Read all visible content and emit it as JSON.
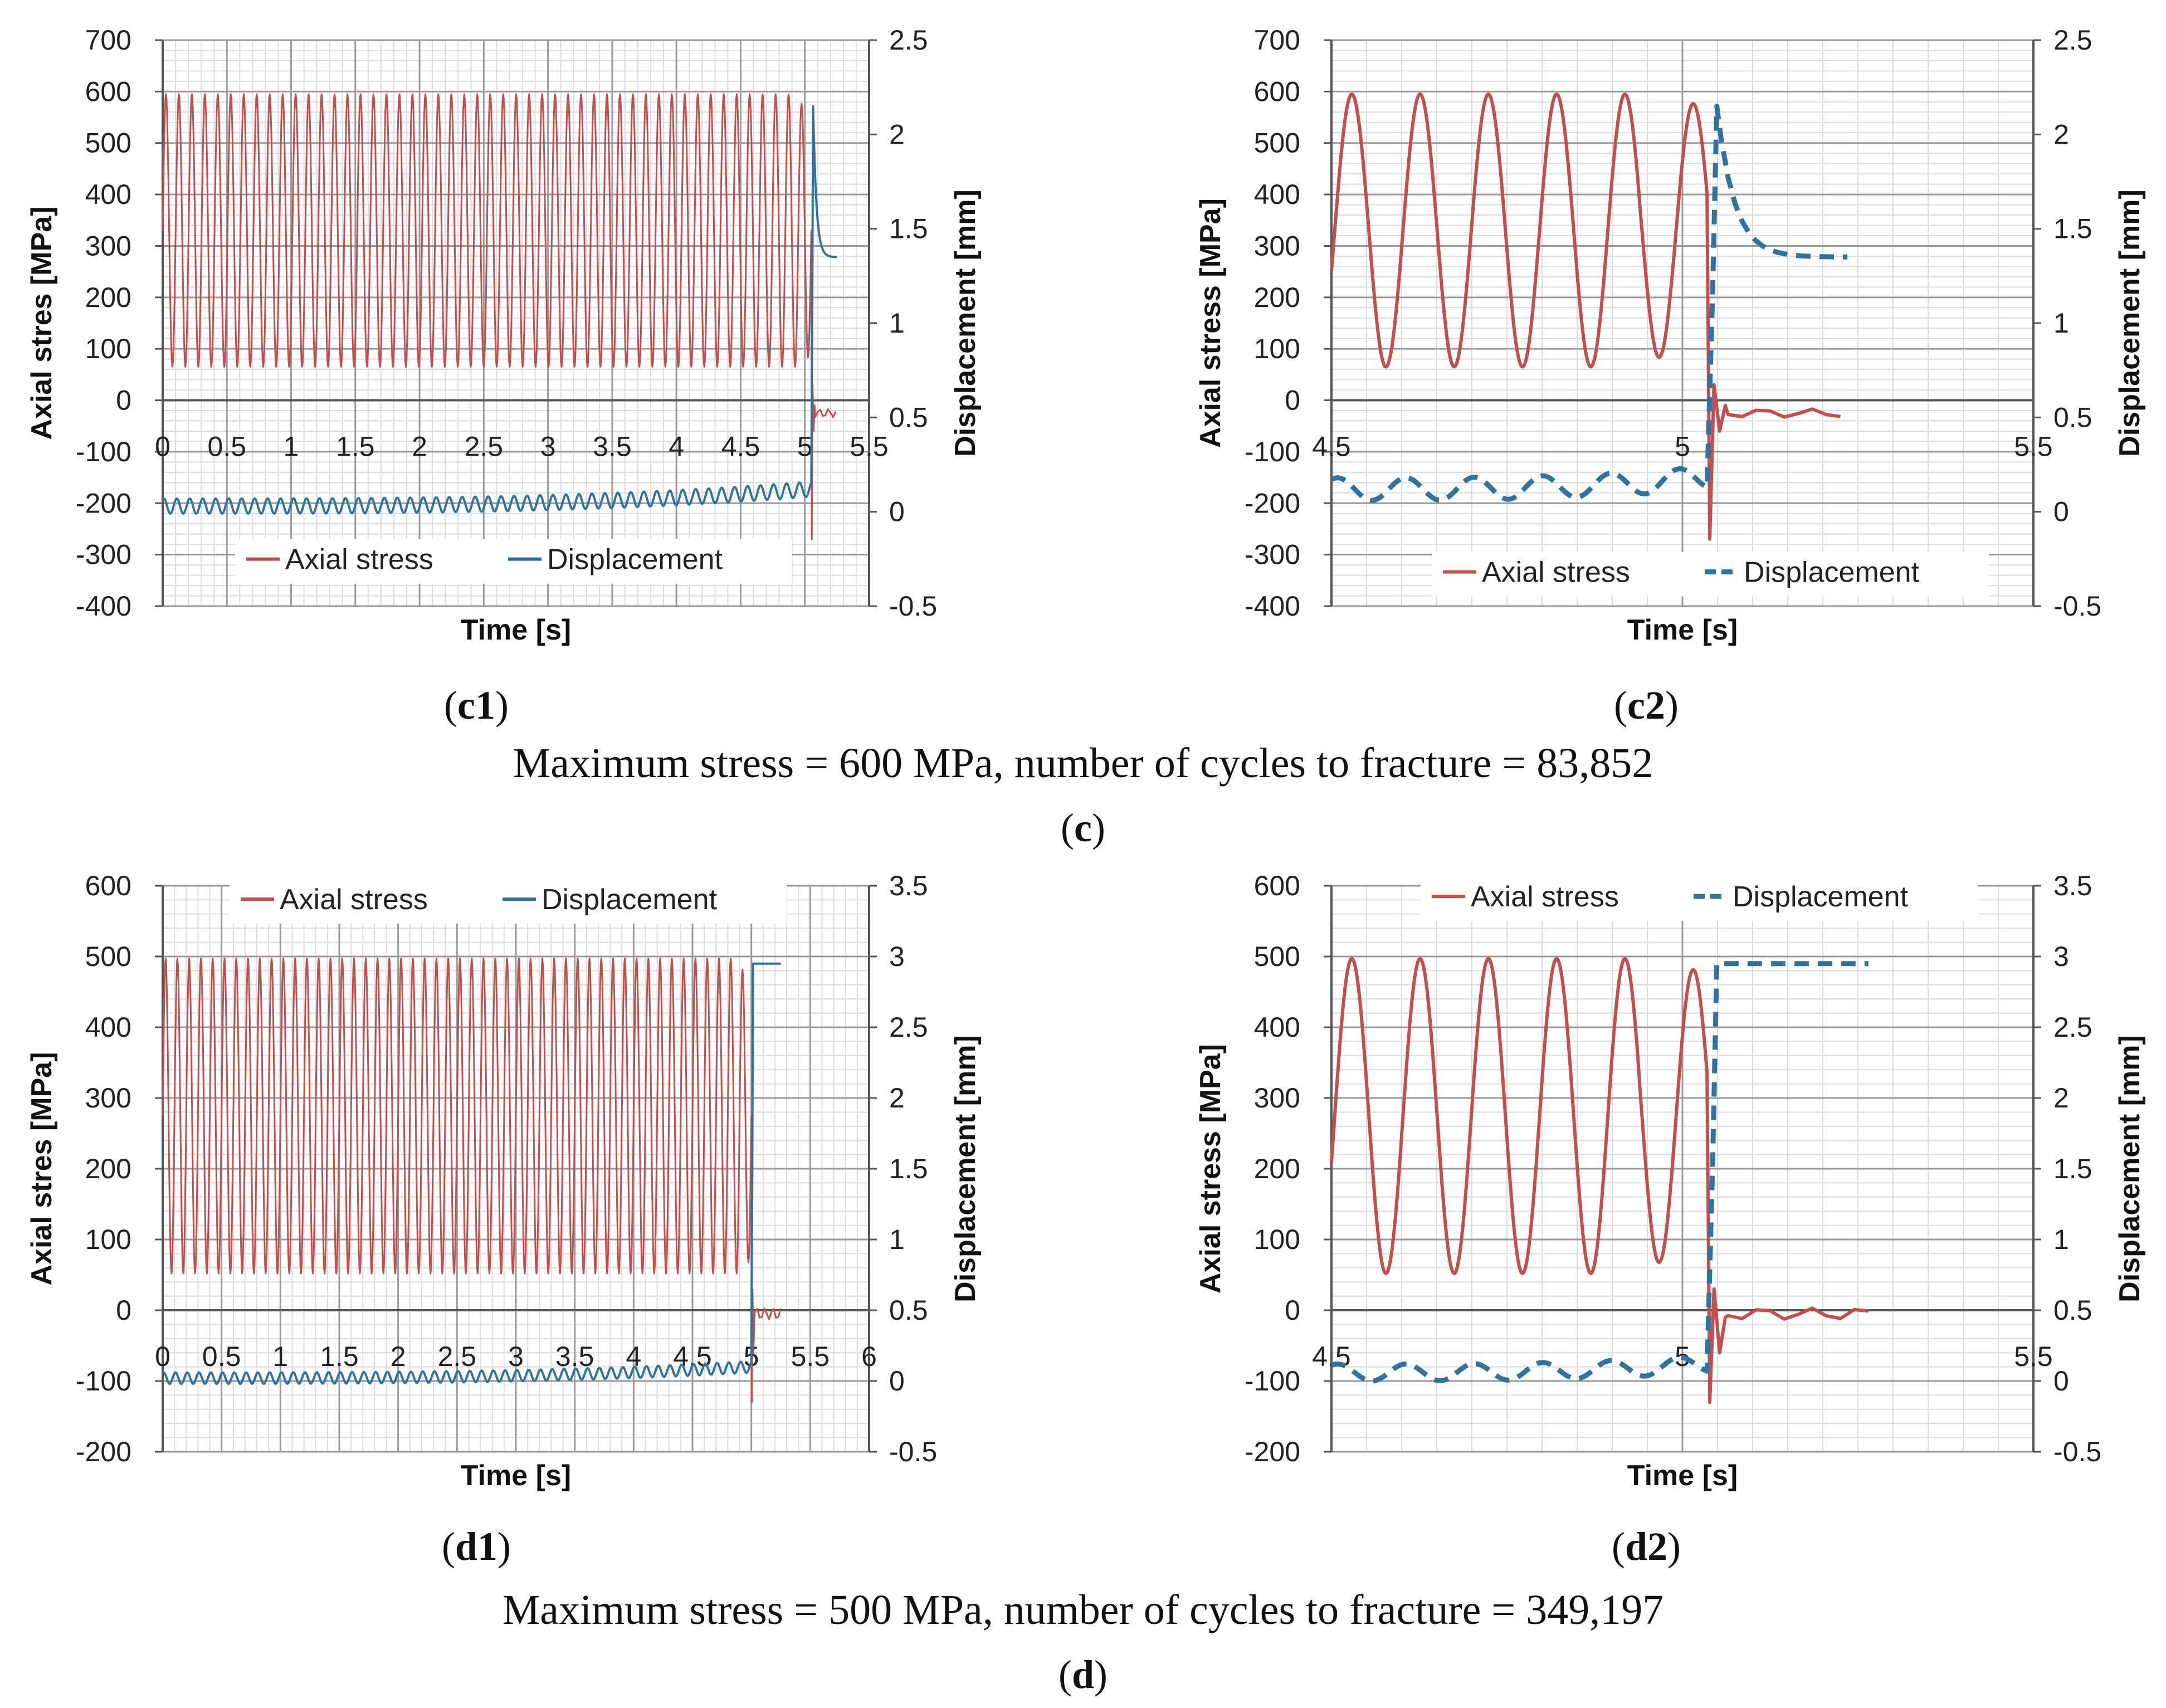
{
  "figure": {
    "caption_c": "Maximum stress = 600 MPa, number of cycles to fracture = 83,852",
    "label_c": "c",
    "caption_d": "Maximum stress = 500 MPa, number of cycles to fracture = 349,197",
    "label_d": "d"
  },
  "colors": {
    "stress": "#c0504d",
    "displacement": "#31739f",
    "grid_major": "#9a9a9a",
    "grid_minor": "#dcdcdc",
    "axis": "#555555"
  },
  "chart_data": [
    {
      "id": "c1",
      "panel_label": "c1",
      "type": "line",
      "xlabel": "Time [s]",
      "ylabel": "Axial stres [MPa]",
      "y2label": "Displacement [mm]",
      "xlim": [
        0,
        5.5
      ],
      "xticks": [
        "0",
        "0.5",
        "1",
        "1.5",
        "2",
        "2.5",
        "3",
        "3.5",
        "4",
        "4.5",
        "5",
        "5.5"
      ],
      "ylim": [
        -400,
        700
      ],
      "yticks": [
        "700",
        "600",
        "500",
        "400",
        "300",
        "200",
        "100",
        "0",
        "-100",
        "-200",
        "-300",
        "-400"
      ],
      "y2lim": [
        -0.5,
        2.5
      ],
      "y2ticks": [
        "2.5",
        "2",
        "1.5",
        "1",
        "0.5",
        "0",
        "-0.5"
      ],
      "legend": [
        "Axial stress",
        "Displacement"
      ],
      "legend_position": "bottom-left",
      "displacement_style": "solid",
      "series": [
        {
          "name": "Axial stress",
          "axis": "left",
          "kind": "cyclic",
          "cycles": 50,
          "min": 65,
          "max": 595,
          "t_start": 0.0,
          "t_end": 5.05,
          "fracture_time": 5.05,
          "fracture_min": -270,
          "fracture_max": 30,
          "end_time": 5.25,
          "end_value": -25
        },
        {
          "name": "Displacement",
          "axis": "right",
          "kind": "cyclic",
          "cycles": 50,
          "start_mean": 0.03,
          "end_mean": 0.12,
          "amplitude": 0.04,
          "t_start": 0.0,
          "t_end": 5.05,
          "fracture_time": 5.05,
          "peak_value": 2.15,
          "plateau_value": 1.35,
          "end_time": 5.25
        }
      ]
    },
    {
      "id": "c2",
      "panel_label": "c2",
      "type": "line",
      "xlabel": "Time [s]",
      "ylabel": "Axial stress [MPa]",
      "y2label": "Displacement [mm]",
      "xlim": [
        4.5,
        5.5
      ],
      "xticks": [
        "4.5",
        "5",
        "5.5"
      ],
      "ylim": [
        -400,
        700
      ],
      "yticks": [
        "700",
        "600",
        "500",
        "400",
        "300",
        "200",
        "100",
        "0",
        "-100",
        "-200",
        "-300",
        "-400"
      ],
      "y2lim": [
        -0.5,
        2.5
      ],
      "y2ticks": [
        "2.5",
        "2",
        "1.5",
        "1",
        "0.5",
        "0",
        "-0.5"
      ],
      "legend": [
        "Axial stress",
        "Displacement"
      ],
      "legend_position": "bottom-center",
      "displacement_style": "dashed",
      "series": [
        {
          "name": "Axial stress",
          "axis": "left",
          "kind": "cyclic",
          "cycles": 5.5,
          "min": 65,
          "max": 595,
          "t_start": 4.5,
          "t_end": 5.035,
          "fracture_time": 5.035,
          "fracture_min": -270,
          "fracture_max": 30,
          "end_time": 5.24,
          "end_value": -25
        },
        {
          "name": "Displacement",
          "axis": "right",
          "kind": "cyclic",
          "cycles": 5.5,
          "start_mean": 0.12,
          "end_mean": 0.18,
          "amplitude": 0.06,
          "t_start": 4.5,
          "t_end": 5.035,
          "fracture_time": 5.035,
          "peak_value": 2.15,
          "plateau_value": 1.35,
          "end_time": 5.24
        }
      ]
    },
    {
      "id": "d1",
      "panel_label": "d1",
      "type": "line",
      "xlabel": "Time [s]",
      "ylabel": "Axial stres [MPa]",
      "y2label": "Displacement [mm]",
      "xlim": [
        0,
        6
      ],
      "xticks": [
        "0",
        "0.5",
        "1",
        "1.5",
        "2",
        "2.5",
        "3",
        "3.5",
        "4",
        "4.5",
        "5",
        "5.5",
        "6"
      ],
      "ylim": [
        -200,
        600
      ],
      "yticks": [
        "600",
        "500",
        "400",
        "300",
        "200",
        "100",
        "0",
        "-100",
        "-200"
      ],
      "y2lim": [
        -0.5,
        3.5
      ],
      "y2ticks": [
        "3.5",
        "3",
        "2.5",
        "2",
        "1.5",
        "1",
        "0.5",
        "0",
        "-0.5"
      ],
      "legend": [
        "Axial stress",
        "Displacement"
      ],
      "legend_position": "top-left",
      "displacement_style": "solid",
      "series": [
        {
          "name": "Axial stress",
          "axis": "left",
          "kind": "cyclic",
          "cycles": 50,
          "min": 52,
          "max": 497,
          "t_start": 0.0,
          "t_end": 5.0,
          "fracture_time": 5.0,
          "fracture_min": -130,
          "fracture_max": 30,
          "end_time": 5.25,
          "end_value": -5
        },
        {
          "name": "Displacement",
          "axis": "right",
          "kind": "cyclic",
          "cycles": 50,
          "start_mean": 0.02,
          "end_mean": 0.1,
          "amplitude": 0.04,
          "t_start": 0.0,
          "t_end": 5.0,
          "fracture_time": 5.0,
          "peak_value": 2.95,
          "plateau_value": 2.95,
          "end_time": 5.25
        }
      ]
    },
    {
      "id": "d2",
      "panel_label": "d2",
      "type": "line",
      "xlabel": "Time [s]",
      "ylabel": "Axial stress [MPa]",
      "y2label": "Displacement [mm]",
      "xlim": [
        4.5,
        5.5
      ],
      "xticks": [
        "4.5",
        "5",
        "5.5"
      ],
      "ylim": [
        -200,
        600
      ],
      "yticks": [
        "600",
        "500",
        "400",
        "300",
        "200",
        "100",
        "0",
        "-100",
        "-200"
      ],
      "y2lim": [
        -0.5,
        3.5
      ],
      "y2ticks": [
        "3.5",
        "3",
        "2.5",
        "2",
        "1.5",
        "1",
        "0.5",
        "0",
        "-0.5"
      ],
      "legend": [
        "Axial stress",
        "Displacement"
      ],
      "legend_position": "top-center",
      "displacement_style": "dashed",
      "series": [
        {
          "name": "Axial stress",
          "axis": "left",
          "kind": "cyclic",
          "cycles": 5.5,
          "min": 52,
          "max": 497,
          "t_start": 4.5,
          "t_end": 5.035,
          "fracture_time": 5.035,
          "fracture_min": -130,
          "fracture_max": 30,
          "end_time": 5.27,
          "end_value": -5
        },
        {
          "name": "Displacement",
          "axis": "right",
          "kind": "cyclic",
          "cycles": 5.5,
          "start_mean": 0.06,
          "end_mean": 0.12,
          "amplitude": 0.06,
          "t_start": 4.5,
          "t_end": 5.035,
          "fracture_time": 5.035,
          "peak_value": 2.95,
          "plateau_value": 2.95,
          "end_time": 5.27
        }
      ]
    }
  ]
}
